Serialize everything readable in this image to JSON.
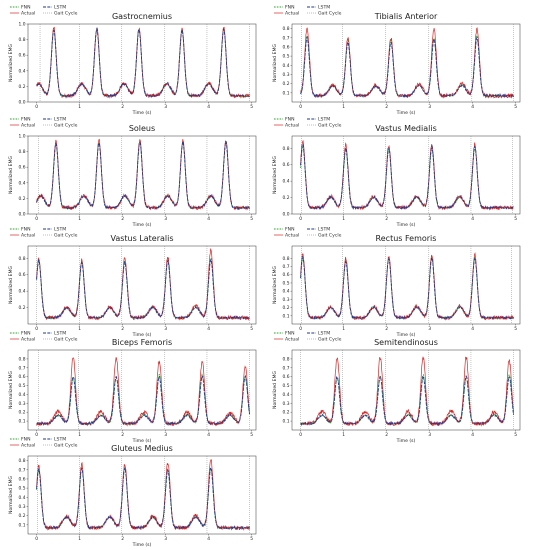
{
  "legend": {
    "fnn": "FNN",
    "actual": "Actual",
    "lstm": "LSTM",
    "gait_cycle": "Gait Cycle"
  },
  "colors": {
    "fnn": "#2ca02c",
    "actual": "#d62728",
    "lstm": "#1f3a93",
    "gait_cycle": "#7f7f7f"
  },
  "chart_data": [
    {
      "type": "line",
      "title": "Gastrocnemius",
      "xlabel": "Time (s)",
      "ylabel": "Normalized EMG",
      "xlim": [
        -0.2,
        5.1
      ],
      "ylim": [
        0,
        1.0
      ],
      "yticks": [
        0.0,
        0.2,
        0.4,
        0.6,
        0.8,
        1.0
      ],
      "xticks": [
        0,
        1,
        2,
        3,
        4,
        5
      ],
      "gait_cycle_times": [
        0.08,
        1.0,
        1.98,
        2.98,
        3.96,
        4.95
      ],
      "peak_times": [
        0.4,
        1.4,
        2.38,
        3.38,
        4.35
      ],
      "series": [
        {
          "name": "FNN",
          "peaks": [
            0.94,
            0.94,
            0.93,
            0.93,
            0.94
          ]
        },
        {
          "name": "Actual",
          "peaks": [
            0.95,
            0.95,
            0.95,
            0.95,
            0.95
          ]
        },
        {
          "name": "LSTM",
          "peaks": [
            0.92,
            0.93,
            0.93,
            0.92,
            0.93
          ]
        }
      ]
    },
    {
      "type": "line",
      "title": "Tibialis Anterior",
      "xlabel": "Time (s)",
      "ylabel": "Normalized EMG",
      "xlim": [
        -0.2,
        5.1
      ],
      "ylim": [
        0,
        0.85
      ],
      "yticks": [
        0.1,
        0.2,
        0.3,
        0.4,
        0.5,
        0.6,
        0.7,
        0.8
      ],
      "xticks": [
        0,
        1,
        2,
        3,
        4,
        5
      ],
      "gait_cycle_times": [
        0.02,
        0.98,
        1.98,
        2.98,
        3.98,
        4.95
      ],
      "peak_times": [
        0.15,
        1.1,
        2.1,
        3.1,
        4.1
      ],
      "series": [
        {
          "name": "FNN",
          "peaks": [
            0.72,
            0.68,
            0.68,
            0.7,
            0.72
          ]
        },
        {
          "name": "Actual",
          "peaks": [
            0.8,
            0.7,
            0.7,
            0.8,
            0.8
          ]
        },
        {
          "name": "LSTM",
          "peaks": [
            0.7,
            0.65,
            0.65,
            0.68,
            0.7
          ]
        }
      ]
    },
    {
      "type": "line",
      "title": "Soleus",
      "xlabel": "Time (s)",
      "ylabel": "Normalized EMG",
      "xlim": [
        -0.2,
        5.1
      ],
      "ylim": [
        0,
        1.0
      ],
      "yticks": [
        0.0,
        0.2,
        0.4,
        0.6,
        0.8,
        1.0
      ],
      "xticks": [
        0,
        1,
        2,
        3,
        4,
        5
      ],
      "gait_cycle_times": [
        0.05,
        1.0,
        1.98,
        2.98,
        3.96,
        4.95
      ],
      "peak_times": [
        0.45,
        1.45,
        2.4,
        3.4,
        4.4
      ],
      "series": [
        {
          "name": "FNN",
          "peaks": [
            0.9,
            0.92,
            0.93,
            0.93,
            0.93
          ]
        },
        {
          "name": "Actual",
          "peaks": [
            0.93,
            0.94,
            0.95,
            0.95,
            0.95
          ]
        },
        {
          "name": "LSTM",
          "peaks": [
            0.9,
            0.91,
            0.92,
            0.92,
            0.92
          ]
        }
      ]
    },
    {
      "type": "line",
      "title": "Vastus Medialis",
      "xlabel": "Time (s)",
      "ylabel": "Normalized EMG",
      "xlim": [
        -0.2,
        5.1
      ],
      "ylim": [
        0,
        0.95
      ],
      "yticks": [
        0.0,
        0.2,
        0.4,
        0.6,
        0.8
      ],
      "xticks": [
        0,
        1,
        2,
        3,
        4,
        5
      ],
      "gait_cycle_times": [
        0.02,
        1.0,
        1.98,
        2.98,
        3.96,
        4.92
      ],
      "peak_times": [
        0.05,
        1.05,
        2.05,
        3.05,
        4.05
      ],
      "series": [
        {
          "name": "FNN",
          "peaks": [
            0.82,
            0.78,
            0.78,
            0.8,
            0.8
          ]
        },
        {
          "name": "Actual",
          "peaks": [
            0.88,
            0.84,
            0.84,
            0.85,
            0.85
          ]
        },
        {
          "name": "LSTM",
          "peaks": [
            0.85,
            0.8,
            0.8,
            0.82,
            0.82
          ]
        }
      ]
    },
    {
      "type": "line",
      "title": "Vastus Lateralis",
      "xlabel": "Time (s)",
      "ylabel": "Normalized EMG",
      "xlim": [
        -0.2,
        5.1
      ],
      "ylim": [
        0,
        0.95
      ],
      "yticks": [
        0.2,
        0.4,
        0.6,
        0.8
      ],
      "xticks": [
        0,
        1,
        2,
        3,
        4,
        5
      ],
      "gait_cycle_times": [
        0.0,
        1.0,
        1.98,
        2.98,
        3.96,
        4.95
      ],
      "peak_times": [
        0.05,
        1.05,
        2.05,
        3.05,
        4.05
      ],
      "series": [
        {
          "name": "FNN",
          "peaks": [
            0.78,
            0.76,
            0.76,
            0.78,
            0.8
          ]
        },
        {
          "name": "Actual",
          "peaks": [
            0.8,
            0.78,
            0.8,
            0.82,
            0.9
          ]
        },
        {
          "name": "LSTM",
          "peaks": [
            0.77,
            0.75,
            0.75,
            0.77,
            0.78
          ]
        }
      ]
    },
    {
      "type": "line",
      "title": "Rectus Femoris",
      "xlabel": "Time (s)",
      "ylabel": "Normalized EMG",
      "xlim": [
        -0.2,
        5.1
      ],
      "ylim": [
        0,
        0.95
      ],
      "yticks": [
        0.1,
        0.2,
        0.3,
        0.4,
        0.5,
        0.6,
        0.7,
        0.8
      ],
      "xticks": [
        0,
        1,
        2,
        3,
        4,
        5
      ],
      "gait_cycle_times": [
        0.02,
        0.98,
        1.98,
        2.98,
        3.96,
        4.9
      ],
      "peak_times": [
        0.05,
        1.05,
        2.05,
        3.05,
        4.05
      ],
      "series": [
        {
          "name": "FNN",
          "peaks": [
            0.8,
            0.78,
            0.8,
            0.82,
            0.8
          ]
        },
        {
          "name": "Actual",
          "peaks": [
            0.85,
            0.8,
            0.82,
            0.85,
            0.85
          ]
        },
        {
          "name": "LSTM",
          "peaks": [
            0.82,
            0.76,
            0.8,
            0.8,
            0.8
          ]
        }
      ]
    },
    {
      "type": "line",
      "title": "Biceps Femoris",
      "xlabel": "Time (s)",
      "ylabel": "Normalized EMG",
      "xlim": [
        -0.2,
        5.1
      ],
      "ylim": [
        0,
        0.9
      ],
      "yticks": [
        0.1,
        0.2,
        0.3,
        0.4,
        0.5,
        0.6,
        0.7,
        0.8
      ],
      "xticks": [
        0,
        1,
        2,
        3,
        4,
        5
      ],
      "gait_cycle_times": [
        0.05,
        0.98,
        1.98,
        2.98,
        3.96,
        4.95
      ],
      "peak_times": [
        0.85,
        1.85,
        2.85,
        3.85,
        4.85
      ],
      "series": [
        {
          "name": "FNN",
          "peaks": [
            0.6,
            0.6,
            0.62,
            0.62,
            0.6
          ]
        },
        {
          "name": "Actual",
          "peaks": [
            0.82,
            0.82,
            0.78,
            0.78,
            0.72
          ]
        },
        {
          "name": "LSTM",
          "peaks": [
            0.6,
            0.6,
            0.6,
            0.6,
            0.6
          ]
        }
      ]
    },
    {
      "type": "line",
      "title": "Semitendinosus",
      "xlabel": "Time (s)",
      "ylabel": "Normalized EMG",
      "xlim": [
        -0.2,
        5.1
      ],
      "ylim": [
        0,
        0.9
      ],
      "yticks": [
        0.1,
        0.2,
        0.3,
        0.4,
        0.5,
        0.6,
        0.7,
        0.8
      ],
      "xticks": [
        0,
        1,
        2,
        3,
        4,
        5
      ],
      "gait_cycle_times": [
        0.0,
        0.98,
        1.98,
        2.98,
        3.96,
        4.95
      ],
      "peak_times": [
        0.85,
        1.85,
        2.85,
        3.85,
        4.85
      ],
      "series": [
        {
          "name": "FNN",
          "peaks": [
            0.6,
            0.6,
            0.62,
            0.6,
            0.62
          ]
        },
        {
          "name": "Actual",
          "peaks": [
            0.82,
            0.82,
            0.82,
            0.82,
            0.78
          ]
        },
        {
          "name": "LSTM",
          "peaks": [
            0.6,
            0.6,
            0.6,
            0.6,
            0.6
          ]
        }
      ]
    },
    {
      "type": "line",
      "title": "Gluteus Medius",
      "xlabel": "Time (s)",
      "ylabel": "Normalized EMG",
      "xlim": [
        -0.2,
        5.1
      ],
      "ylim": [
        0,
        0.85
      ],
      "yticks": [
        0.1,
        0.2,
        0.3,
        0.4,
        0.5,
        0.6,
        0.7,
        0.8
      ],
      "xticks": [
        0,
        1,
        2,
        3,
        4,
        5
      ],
      "gait_cycle_times": [
        0.02,
        1.0,
        1.98,
        2.98,
        3.96,
        4.95
      ],
      "peak_times": [
        0.05,
        1.05,
        2.05,
        3.05,
        4.05
      ],
      "series": [
        {
          "name": "FNN",
          "peaks": [
            0.7,
            0.72,
            0.72,
            0.7,
            0.72
          ]
        },
        {
          "name": "Actual",
          "peaks": [
            0.74,
            0.76,
            0.76,
            0.78,
            0.82
          ]
        },
        {
          "name": "LSTM",
          "peaks": [
            0.7,
            0.72,
            0.72,
            0.7,
            0.72
          ]
        }
      ]
    }
  ]
}
